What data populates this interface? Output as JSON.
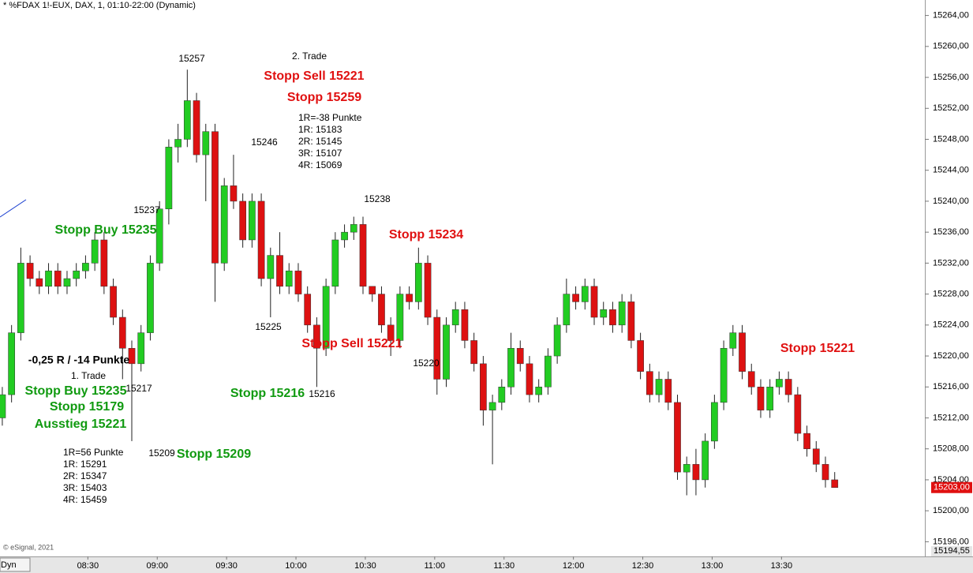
{
  "chart_data": {
    "type": "candlestick",
    "title": "* %FDAX 1!-EUX, DAX, 1, 01:10-22:00 (Dynamic)",
    "credit": "© eSignal, 2021",
    "button": "Dyn",
    "up_color": "#22cc22",
    "down_color": "#dd1111",
    "x": [
      "07:53",
      "07:57",
      "08:01",
      "08:05",
      "08:09",
      "08:13",
      "08:17",
      "08:21",
      "08:25",
      "08:29",
      "08:33",
      "08:37",
      "08:41",
      "08:45",
      "08:49",
      "08:53",
      "08:57",
      "09:01",
      "09:05",
      "09:09",
      "09:13",
      "09:17",
      "09:21",
      "09:25",
      "09:29",
      "09:33",
      "09:37",
      "09:41",
      "09:45",
      "09:49",
      "09:53",
      "09:57",
      "10:01",
      "10:05",
      "10:09",
      "10:13",
      "10:17",
      "10:21",
      "10:25",
      "10:29",
      "10:33",
      "10:37",
      "10:41",
      "10:45",
      "10:49",
      "10:53",
      "10:57",
      "11:01",
      "11:05",
      "11:09",
      "11:13",
      "11:17",
      "11:21",
      "11:25",
      "11:29",
      "11:33",
      "11:37",
      "11:41",
      "11:45",
      "11:49",
      "11:53",
      "11:57",
      "12:01",
      "12:05",
      "12:09",
      "12:13",
      "12:17",
      "12:21",
      "12:25",
      "12:29",
      "12:33",
      "12:37",
      "12:41",
      "12:45",
      "12:49",
      "12:53",
      "12:57",
      "13:01",
      "13:05",
      "13:09",
      "13:13",
      "13:17",
      "13:21",
      "13:25",
      "13:29",
      "13:33",
      "13:37",
      "13:41",
      "13:45",
      "13:49",
      "13:53"
    ],
    "open": [
      15212,
      15215,
      15223,
      15232,
      15230,
      15229,
      15231,
      15229,
      15230,
      15231,
      15232,
      15235,
      15229,
      15225,
      15221,
      15219,
      15223,
      15232,
      15239,
      15247,
      15248,
      15253,
      15246,
      15249,
      15232,
      15242,
      15240,
      15235,
      15240,
      15230,
      15233,
      15229,
      15231,
      15228,
      15224,
      15221,
      15229,
      15235,
      15236,
      15237,
      15229,
      15228,
      15224,
      15222,
      15228,
      15227,
      15232,
      15225,
      15217,
      15224,
      15226,
      15222,
      15219,
      15213,
      15214,
      15216,
      15221,
      15219,
      15215,
      15216,
      15220,
      15224,
      15228,
      15227,
      15229,
      15225,
      15226,
      15224,
      15227,
      15222,
      15218,
      15215,
      15217,
      15214,
      15205,
      15206,
      15204,
      15209,
      15214,
      15221,
      15223,
      15218,
      15216,
      15213,
      15216,
      15217,
      15215,
      15210,
      15208,
      15206,
      15204
    ],
    "high": [
      15216,
      15224,
      15234,
      15233,
      15231,
      15232,
      15232,
      15231,
      15232,
      15233,
      15236,
      15236,
      15230,
      15226,
      15222,
      15224,
      15233,
      15240,
      15248,
      15250,
      15257,
      15254,
      15250,
      15250,
      15243,
      15246,
      15241,
      15241,
      15241,
      15234,
      15236,
      15232,
      15232,
      15229,
      15225,
      15230,
      15236,
      15237,
      15238,
      15238,
      15229,
      15229,
      15225,
      15229,
      15229,
      15234,
      15233,
      15226,
      15225,
      15227,
      15227,
      15223,
      15220,
      15215,
      15217,
      15223,
      15222,
      15220,
      15217,
      15221,
      15225,
      15230,
      15229,
      15230,
      15230,
      15227,
      15227,
      15228,
      15228,
      15223,
      15219,
      15218,
      15218,
      15215,
      15207,
      15208,
      15210,
      15215,
      15222,
      15224,
      15224,
      15219,
      15217,
      15217,
      15218,
      15218,
      15216,
      15211,
      15209,
      15207,
      15205
    ],
    "low": [
      15211,
      15214,
      15222,
      15229,
      15228,
      15228,
      15228,
      15228,
      15229,
      15230,
      15231,
      15228,
      15224,
      15217,
      15209,
      15218,
      15222,
      15231,
      15237,
      15245,
      15247,
      15245,
      15240,
      15227,
      15231,
      15239,
      15234,
      15234,
      15229,
      15225,
      15228,
      15228,
      15227,
      15223,
      15216,
      15220,
      15228,
      15234,
      15235,
      15228,
      15227,
      15223,
      15220,
      15221,
      15226,
      15226,
      15224,
      15215,
      15216,
      15223,
      15221,
      15218,
      15211,
      15206,
      15213,
      15215,
      15218,
      15214,
      15214,
      15215,
      15219,
      15223,
      15226,
      15226,
      15224,
      15224,
      15223,
      15223,
      15221,
      15217,
      15214,
      15214,
      15213,
      15204,
      15202,
      15202,
      15203,
      15208,
      15213,
      15220,
      15217,
      15215,
      15212,
      15212,
      15215,
      15214,
      15209,
      15207,
      15205,
      15203,
      15203
    ],
    "close": [
      15215,
      15223,
      15232,
      15230,
      15229,
      15231,
      15229,
      15230,
      15231,
      15232,
      15235,
      15229,
      15225,
      15221,
      15219,
      15223,
      15232,
      15239,
      15247,
      15248,
      15253,
      15246,
      15249,
      15232,
      15242,
      15240,
      15235,
      15240,
      15230,
      15233,
      15229,
      15231,
      15228,
      15224,
      15221,
      15229,
      15235,
      15236,
      15237,
      15229,
      15228,
      15224,
      15222,
      15228,
      15227,
      15232,
      15225,
      15217,
      15224,
      15226,
      15222,
      15219,
      15213,
      15214,
      15216,
      15221,
      15219,
      15215,
      15216,
      15220,
      15224,
      15228,
      15227,
      15229,
      15225,
      15226,
      15224,
      15227,
      15222,
      15218,
      15215,
      15217,
      15214,
      15205,
      15206,
      15204,
      15209,
      15214,
      15221,
      15223,
      15218,
      15216,
      15213,
      15216,
      15217,
      15215,
      15210,
      15208,
      15206,
      15204,
      15203
    ],
    "xlim": [
      "07:52",
      "14:32"
    ],
    "xticks": [
      "08:30",
      "09:00",
      "09:30",
      "10:00",
      "10:30",
      "11:00",
      "11:30",
      "12:00",
      "12:30",
      "13:00",
      "13:30"
    ],
    "ylim": [
      15194.1,
      15266
    ],
    "yticks": [
      {
        "value": 15196,
        "label": "15196,00"
      },
      {
        "value": 15200,
        "label": "15200,00"
      },
      {
        "value": 15204,
        "label": "15204,00"
      },
      {
        "value": 15208,
        "label": "15208,00"
      },
      {
        "value": 15212,
        "label": "15212,00"
      },
      {
        "value": 15216,
        "label": "15216,00"
      },
      {
        "value": 15220,
        "label": "15220,00"
      },
      {
        "value": 15224,
        "label": "15224,00"
      },
      {
        "value": 15228,
        "label": "15228,00"
      },
      {
        "value": 15232,
        "label": "15232,00"
      },
      {
        "value": 15236,
        "label": "15236,00"
      },
      {
        "value": 15240,
        "label": "15240,00"
      },
      {
        "value": 15244,
        "label": "15244,00"
      },
      {
        "value": 15248,
        "label": "15248,00"
      },
      {
        "value": 15252,
        "label": "15252,00"
      },
      {
        "value": 15256,
        "label": "15256,00"
      },
      {
        "value": 15260,
        "label": "15260,00"
      },
      {
        "value": 15264,
        "label": "15264,00"
      }
    ],
    "last_price": {
      "value": 15203,
      "label": "15203,00"
    },
    "bottom_label": {
      "value": 15194.55,
      "label": "15194,55"
    },
    "annotations": [
      "15257",
      "2. Trade",
      "Stopp Sell 15221",
      "Stopp 15259",
      "1R=-38 Punkte",
      "1R: 15183",
      "2R: 15145",
      "3R: 15107",
      "4R: 15069",
      "15246",
      "15237",
      "15238",
      "Stopp Buy 15235",
      "Stopp 15234",
      "15225",
      "Stopp Sell 15221",
      "15220",
      "-0,25 R / -14 Punkte",
      "1. Trade",
      "Stopp Buy 15235",
      "15217",
      "Stopp 15179",
      "Ausstieg 15221",
      "Stopp 15216",
      "15216",
      "15209",
      "Stopp 15209",
      "1R=56 Punkte",
      "1R: 15291",
      "2R: 15347",
      "3R: 15403",
      "4R: 15459",
      "Stopp 15221"
    ]
  }
}
